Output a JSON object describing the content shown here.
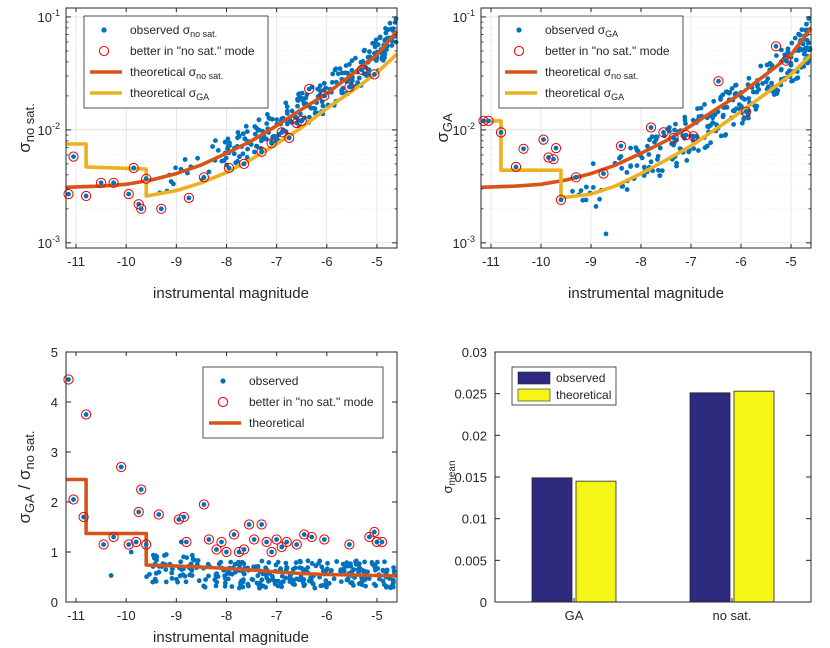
{
  "chart_data": [
    {
      "id": "p1",
      "type": "scatter",
      "y_scale": "log",
      "xlim": [
        -11.2,
        -4.6
      ],
      "ylim": [
        0.0009,
        0.12
      ],
      "xticks": [
        -11,
        -10,
        -9,
        -8,
        -7,
        -6,
        -5
      ],
      "xtick_labels": [
        "-11",
        "-10",
        "-9",
        "-8",
        "-7",
        "-6",
        "-5"
      ],
      "yticks": [
        0.001,
        0.01,
        0.1
      ],
      "ytick_base": "10",
      "ytick_exps": [
        "-3",
        "-2",
        "-1"
      ],
      "xlabel": "instrumental magnitude",
      "ylabel": "σ",
      "ylabel_sub": "no sat.",
      "grid": true,
      "legend_position": "top-left",
      "legend": [
        {
          "kind": "dot",
          "text": "observed σ",
          "sub": "no sat."
        },
        {
          "kind": "circle",
          "text": "better in \"no sat.\" mode"
        },
        {
          "kind": "line-orange",
          "text": "theoretical σ",
          "sub": "no sat."
        },
        {
          "kind": "line-yellow",
          "text": "theoretical σ",
          "sub": "GA"
        }
      ],
      "series": [
        {
          "name": "theoretical σ no sat.",
          "color": "#d95319",
          "x": [
            -11.2,
            -10.5,
            -10,
            -9.5,
            -9,
            -8.5,
            -8,
            -7.5,
            -7,
            -6.5,
            -6,
            -5.5,
            -5,
            -4.6
          ],
          "y": [
            0.0031,
            0.00318,
            0.0033,
            0.0036,
            0.0041,
            0.0049,
            0.0062,
            0.008,
            0.0109,
            0.0152,
            0.021,
            0.031,
            0.046,
            0.075
          ]
        },
        {
          "name": "theoretical σ GA",
          "color": "#edb120",
          "x": [
            -11.2,
            -10.8,
            -10.8,
            -9.6,
            -9.6,
            -9,
            -8.5,
            -8,
            -7.5,
            -7,
            -6.5,
            -6,
            -5.5,
            -5,
            -4.6
          ],
          "y": [
            0.0075,
            0.0075,
            0.0047,
            0.0045,
            0.0026,
            0.0029,
            0.0034,
            0.0042,
            0.0055,
            0.0075,
            0.0105,
            0.0155,
            0.022,
            0.032,
            0.047
          ]
        },
        {
          "name": "observed σ no sat.",
          "color": "#0072bd",
          "trend": "onoise"
        },
        {
          "name": "better in no sat. mode",
          "color": "#e60000",
          "x": [
            -11.15,
            -11.05,
            -10.8,
            -10.5,
            -10.25,
            -9.95,
            -9.85,
            -9.75,
            -9.7,
            -9.6,
            -9.3,
            -8.75,
            -8.45,
            -7.95,
            -7.65,
            -7.3,
            -7.1,
            -6.9,
            -6.75,
            -6.6,
            -6.5,
            -6.35,
            -6.05,
            -5.55,
            -5.3,
            -5.05
          ],
          "y": [
            0.0027,
            0.0058,
            0.0026,
            0.0034,
            0.0034,
            0.0027,
            0.0046,
            0.0022,
            0.002,
            0.0037,
            0.002,
            0.0025,
            0.0038,
            0.0046,
            0.005,
            0.0064,
            0.0076,
            0.0095,
            0.0085,
            0.0115,
            0.012,
            0.023,
            0.02,
            0.024,
            0.034,
            0.031
          ]
        }
      ]
    },
    {
      "id": "p2",
      "type": "scatter",
      "y_scale": "log",
      "xlim": [
        -11.2,
        -4.6
      ],
      "ylim": [
        0.0009,
        0.12
      ],
      "xticks": [
        -11,
        -10,
        -9,
        -8,
        -7,
        -6,
        -5
      ],
      "xtick_labels": [
        "-11",
        "-10",
        "-9",
        "-8",
        "-7",
        "-6",
        "-5"
      ],
      "yticks": [
        0.001,
        0.01,
        0.1
      ],
      "ytick_base": "10",
      "ytick_exps": [
        "-3",
        "-2",
        "-1"
      ],
      "xlabel": "instrumental magnitude",
      "ylabel": "σ",
      "ylabel_sub": "GA",
      "grid": true,
      "legend_position": "top-left",
      "legend": [
        {
          "kind": "dot",
          "text": "observed σ",
          "sub": "GA"
        },
        {
          "kind": "circle",
          "text": "better in \"no sat.\" mode"
        },
        {
          "kind": "line-orange",
          "text": "theoretical σ",
          "sub": "no sat."
        },
        {
          "kind": "line-yellow",
          "text": "theoretical σ",
          "sub": "GA"
        }
      ],
      "series": [
        {
          "name": "theoretical σ no sat.",
          "color": "#d95319",
          "x": [
            -11.2,
            -10.5,
            -10,
            -9.5,
            -9,
            -8.5,
            -8,
            -7.5,
            -7,
            -6.5,
            -6,
            -5.5,
            -5,
            -4.6
          ],
          "y": [
            0.0031,
            0.00318,
            0.0033,
            0.0036,
            0.0041,
            0.0049,
            0.0062,
            0.008,
            0.0109,
            0.0152,
            0.021,
            0.031,
            0.046,
            0.08
          ]
        },
        {
          "name": "theoretical σ GA",
          "color": "#edb120",
          "x": [
            -11.2,
            -10.8,
            -10.8,
            -9.6,
            -9.6,
            -9,
            -8.5,
            -8,
            -7.5,
            -7,
            -6.5,
            -6,
            -5.5,
            -5,
            -4.6
          ],
          "y": [
            0.012,
            0.012,
            0.0044,
            0.0044,
            0.0025,
            0.0027,
            0.0032,
            0.0041,
            0.0054,
            0.0072,
            0.0102,
            0.0145,
            0.021,
            0.031,
            0.046
          ]
        },
        {
          "name": "observed σ GA",
          "color": "#0072bd",
          "trend": "ga"
        },
        {
          "name": "better in no sat. mode",
          "color": "#e60000",
          "x": [
            -11.15,
            -11.05,
            -10.8,
            -10.5,
            -10.35,
            -9.95,
            -9.85,
            -9.75,
            -9.7,
            -9.6,
            -9.3,
            -8.75,
            -8.4,
            -7.8,
            -7.55,
            -7.35,
            -7.1,
            -6.95,
            -6.45,
            -5.9,
            -5.3,
            -5.1
          ],
          "y": [
            0.012,
            0.012,
            0.0095,
            0.0047,
            0.0068,
            0.0082,
            0.0057,
            0.0055,
            0.0069,
            0.0024,
            0.0038,
            0.0041,
            0.0072,
            0.0105,
            0.0095,
            0.0085,
            0.009,
            0.0088,
            0.027,
            0.0145,
            0.055,
            0.041
          ]
        }
      ]
    },
    {
      "id": "p3",
      "type": "scatter",
      "y_scale": "linear",
      "xlim": [
        -11.2,
        -4.6
      ],
      "ylim": [
        0,
        5
      ],
      "xticks": [
        -11,
        -10,
        -9,
        -8,
        -7,
        -6,
        -5
      ],
      "xtick_labels": [
        "-11",
        "-10",
        "-9",
        "-8",
        "-7",
        "-6",
        "-5"
      ],
      "yticks": [
        0,
        1,
        2,
        3,
        4,
        5
      ],
      "ytick_labels": [
        "0",
        "1",
        "2",
        "3",
        "4",
        "5"
      ],
      "xlabel": "instrumental magnitude",
      "ylabel": "σ",
      "ylabel_sub": "GA",
      "ylabel_mid": " / σ",
      "ylabel_sub2": "no sat.",
      "grid": false,
      "legend_position": "top-right",
      "legend": [
        {
          "kind": "dot",
          "text": "observed"
        },
        {
          "kind": "circle",
          "text": "better in \"no sat.\" mode"
        },
        {
          "kind": "line-orange",
          "text": "theoretical"
        }
      ],
      "series": [
        {
          "name": "theoretical",
          "color": "#d95319",
          "x": [
            -11.2,
            -10.8,
            -10.8,
            -9.6,
            -9.6,
            -9,
            -8.5,
            -8,
            -7.5,
            -7,
            -6.5,
            -6,
            -5.5,
            -5,
            -4.6
          ],
          "y": [
            2.45,
            2.45,
            1.37,
            1.37,
            0.74,
            0.72,
            0.7,
            0.67,
            0.64,
            0.6,
            0.57,
            0.55,
            0.54,
            0.53,
            0.52
          ]
        },
        {
          "name": "observed",
          "color": "#0072bd",
          "trend": "ratio"
        },
        {
          "name": "better in no sat. mode",
          "color": "#e60000",
          "x": [
            -11.15,
            -11.05,
            -10.85,
            -10.8,
            -10.45,
            -10.25,
            -10.1,
            -9.95,
            -9.8,
            -9.75,
            -9.7,
            -9.6,
            -9.35,
            -8.95,
            -8.85,
            -8.8,
            -8.45,
            -8.35,
            -8.2,
            -8.1,
            -8.0,
            -7.85,
            -7.75,
            -7.65,
            -7.55,
            -7.45,
            -7.3,
            -7.2,
            -7.1,
            -7.0,
            -6.9,
            -6.8,
            -6.6,
            -6.45,
            -6.3,
            -6.05,
            -5.55,
            -5.15,
            -5.05,
            -5.0,
            -4.9
          ],
          "y": [
            4.45,
            2.05,
            1.7,
            3.75,
            1.15,
            1.3,
            2.7,
            1.15,
            1.2,
            1.8,
            2.25,
            1.15,
            1.75,
            1.65,
            1.7,
            1.2,
            1.95,
            1.25,
            1.05,
            1.2,
            1.0,
            1.35,
            1.0,
            1.05,
            1.55,
            1.25,
            1.55,
            1.2,
            1.0,
            1.25,
            1.1,
            1.2,
            1.15,
            1.35,
            1.3,
            1.25,
            1.15,
            1.3,
            1.4,
            1.2,
            1.2
          ]
        }
      ]
    },
    {
      "id": "p4",
      "type": "bar",
      "ylim": [
        0,
        0.03
      ],
      "yticks": [
        0,
        0.005,
        0.01,
        0.015,
        0.02,
        0.025,
        0.03
      ],
      "ytick_labels": [
        "0",
        "0.005",
        "0.01",
        "0.015",
        "0.02",
        "0.025",
        "0.03"
      ],
      "categories": [
        "GA",
        "no sat."
      ],
      "ylabel": "σ",
      "ylabel_sub": "mean",
      "legend_position": "top-left",
      "series": [
        {
          "name": "observed",
          "color": "#2e2a7e",
          "values": [
            0.0149,
            0.0251
          ]
        },
        {
          "name": "theoretical",
          "color": "#f5f516",
          "values": [
            0.0145,
            0.0253
          ]
        }
      ]
    }
  ]
}
